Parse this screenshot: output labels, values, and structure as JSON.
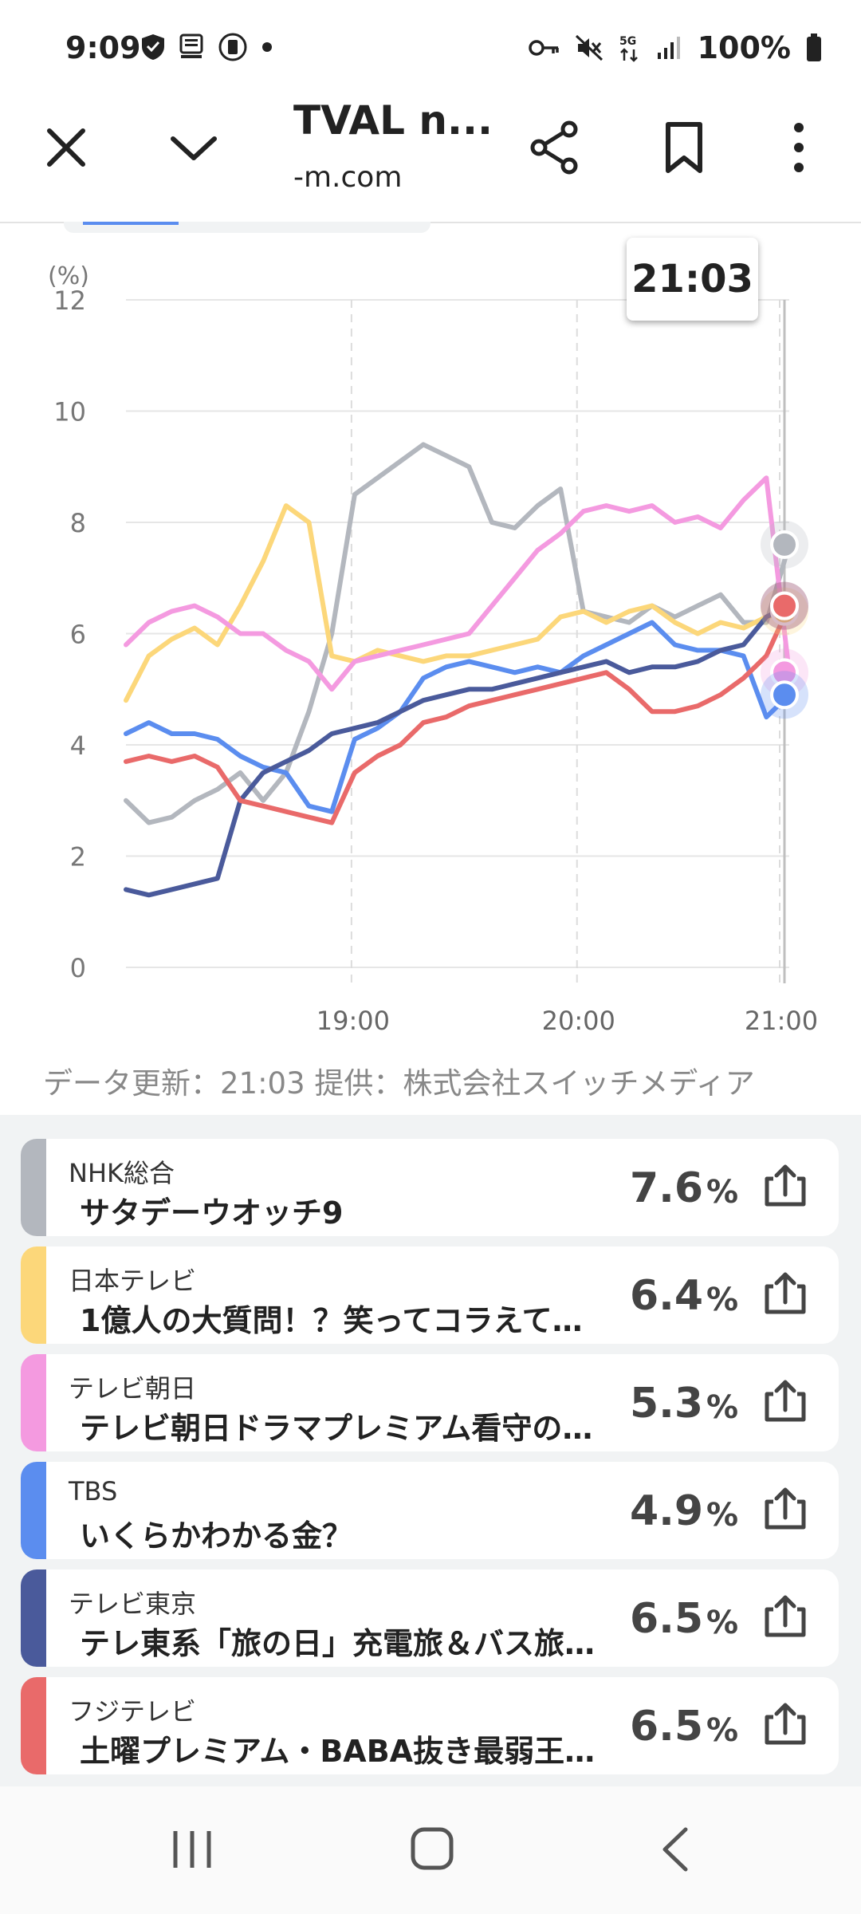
{
  "status": {
    "time": "9:09",
    "battery": "100%",
    "network": "5G"
  },
  "toolbar": {
    "title": "TVAL n...",
    "domain": "-m.com"
  },
  "chart": {
    "tooltip": "21:03",
    "footnote": "データ更新：21:03  提供：株式会社スイッチメディア"
  },
  "chart_data": {
    "type": "line",
    "ylabel": "(%)",
    "ylim": [
      0,
      12
    ],
    "yticks": [
      "0",
      "2",
      "4",
      "6",
      "8",
      "10",
      "12"
    ],
    "xticks": [
      "19:00",
      "20:00",
      "21:00"
    ],
    "grid": true,
    "series": [
      {
        "name": "NHK総合",
        "color": "#b3b7be",
        "values": [
          3.0,
          2.6,
          2.7,
          3.0,
          3.2,
          3.5,
          3.0,
          3.5,
          4.6,
          6.0,
          8.5,
          8.8,
          9.1,
          9.4,
          9.2,
          9.0,
          8.0,
          7.9,
          8.3,
          8.6,
          6.4,
          6.3,
          6.2,
          6.5,
          6.3,
          6.5,
          6.7,
          6.2,
          6.2,
          7.6
        ]
      },
      {
        "name": "日本テレビ",
        "color": "#fcd77a",
        "values": [
          4.8,
          5.6,
          5.9,
          6.1,
          5.8,
          6.5,
          7.3,
          8.3,
          8.0,
          5.6,
          5.5,
          5.7,
          5.6,
          5.5,
          5.6,
          5.6,
          5.7,
          5.8,
          5.9,
          6.3,
          6.4,
          6.2,
          6.4,
          6.5,
          6.2,
          6.0,
          6.2,
          6.1,
          6.3,
          6.4
        ]
      },
      {
        "name": "テレビ朝日",
        "color": "#f49ae0",
        "values": [
          5.8,
          6.2,
          6.4,
          6.5,
          6.3,
          6.0,
          6.0,
          5.7,
          5.5,
          5.0,
          5.5,
          5.6,
          5.7,
          5.8,
          5.9,
          6.0,
          6.5,
          7.0,
          7.5,
          7.8,
          8.2,
          8.3,
          8.2,
          8.3,
          8.0,
          8.1,
          7.9,
          8.4,
          8.8,
          5.3
        ]
      },
      {
        "name": "TBS",
        "color": "#5b8def",
        "values": [
          4.2,
          4.4,
          4.2,
          4.2,
          4.1,
          3.8,
          3.6,
          3.5,
          2.9,
          2.8,
          4.1,
          4.3,
          4.6,
          5.2,
          5.4,
          5.5,
          5.4,
          5.3,
          5.4,
          5.3,
          5.6,
          5.8,
          6.0,
          6.2,
          5.8,
          5.7,
          5.7,
          5.6,
          4.5,
          4.9
        ]
      },
      {
        "name": "テレビ東京",
        "color": "#4a5a9b",
        "values": [
          1.4,
          1.3,
          1.4,
          1.5,
          1.6,
          3.0,
          3.5,
          3.7,
          3.9,
          4.2,
          4.3,
          4.4,
          4.6,
          4.8,
          4.9,
          5.0,
          5.0,
          5.1,
          5.2,
          5.3,
          5.4,
          5.5,
          5.3,
          5.4,
          5.4,
          5.5,
          5.7,
          5.8,
          6.3,
          6.5
        ]
      },
      {
        "name": "フジテレビ",
        "color": "#e96a6a",
        "values": [
          3.7,
          3.8,
          3.7,
          3.8,
          3.6,
          3.0,
          2.9,
          2.8,
          2.7,
          2.6,
          3.5,
          3.8,
          4.0,
          4.4,
          4.5,
          4.7,
          4.8,
          4.9,
          5.0,
          5.1,
          5.2,
          5.3,
          5.0,
          4.6,
          4.6,
          4.7,
          4.9,
          5.2,
          5.6,
          6.5
        ]
      }
    ]
  },
  "list": [
    {
      "channel": "NHK総合",
      "program": "サタデーウオッチ9",
      "rating": "7.6",
      "unit": "%",
      "color": "#b3b7be"
    },
    {
      "channel": "日本テレビ",
      "program": "1億人の大質問！？笑ってコラえて…",
      "rating": "6.4",
      "unit": "%",
      "color": "#fcd77a"
    },
    {
      "channel": "テレビ朝日",
      "program": "テレビ朝日ドラマプレミアム看守の…",
      "rating": "5.3",
      "unit": "%",
      "color": "#f49ae0"
    },
    {
      "channel": "TBS",
      "program": "いくらかわかる金？",
      "rating": "4.9",
      "unit": "%",
      "color": "#5b8def"
    },
    {
      "channel": "テレビ東京",
      "program": "テレ東系「旅の日」充電旅＆バス旅…",
      "rating": "6.5",
      "unit": "%",
      "color": "#4a5a9b"
    },
    {
      "channel": "フジテレビ",
      "program": "土曜プレミアム・BABA抜き最弱王…",
      "rating": "6.5",
      "unit": "%",
      "color": "#e96a6a"
    }
  ]
}
